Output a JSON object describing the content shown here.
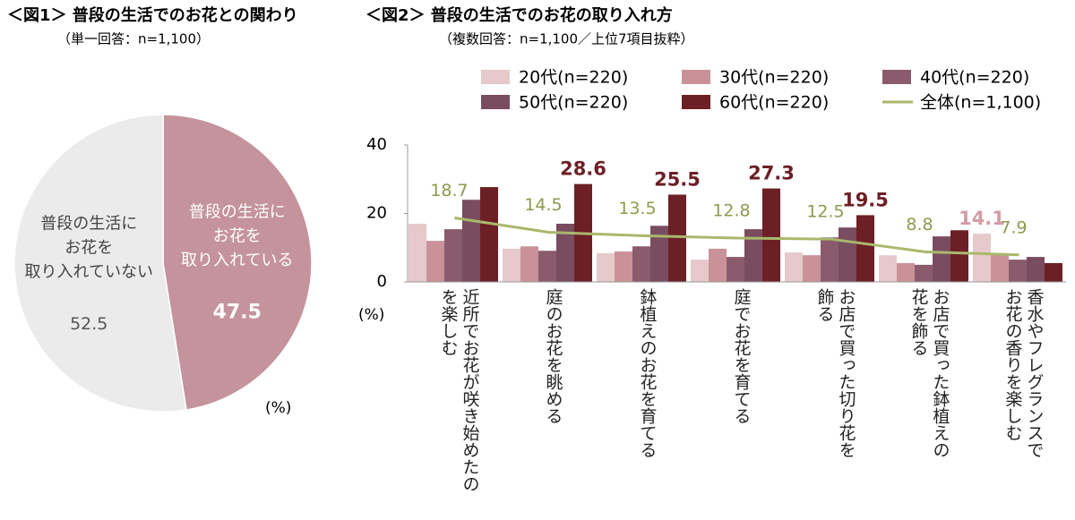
{
  "chart_data": [
    {
      "type": "pie",
      "title": "＜図1＞ 普段の生活でのお花との関わり",
      "subtitle": "（単一回答：n=1,100）",
      "unit": "(%)",
      "categories": [
        [
          "普段の生活に",
          "お花を",
          "取り入れている"
        ],
        [
          "普段の生活に",
          "お花を",
          "取り入れていない"
        ]
      ],
      "values": [
        47.5,
        52.5
      ],
      "colors": [
        "#c4939b",
        "#ebebeb"
      ],
      "value_colors": [
        "#ffffff",
        "#555555"
      ],
      "start": "top",
      "direction": "clockwise"
    },
    {
      "type": "bar",
      "title": "＜図2＞ 普段の生活でのお花の取り入れ方",
      "subtitle": "（複数回答：n=1,100／上位7項目抜粋）",
      "unit": "(%)",
      "categories": [
        [
          "近所でお花が咲き始めたの",
          "を楽しむ"
        ],
        [
          "庭のお花を眺める"
        ],
        [
          "鉢植えのお花を育てる"
        ],
        [
          "庭でお花を育てる"
        ],
        [
          "お店で買った切り花を",
          "飾る"
        ],
        [
          "お店で買った鉢植えの",
          "花を飾る"
        ],
        [
          "香水やフレグランスで",
          "お花の香りを楽しむ"
        ]
      ],
      "ylim": [
        0,
        40
      ],
      "yticks": [
        0,
        20,
        40
      ],
      "legend": "top",
      "series": [
        {
          "name": "20代(n=220)",
          "type": "bar",
          "color": "#e6c9ca",
          "label_color": "#d39ca5",
          "values": [
            17.0,
            9.7,
            8.4,
            6.5,
            8.6,
            7.8,
            14.1
          ],
          "value_labels": [
            null,
            null,
            null,
            null,
            null,
            null,
            "14.1"
          ]
        },
        {
          "name": "30代(n=220)",
          "type": "bar",
          "color": "#c99299",
          "values": [
            12.0,
            10.4,
            8.9,
            9.7,
            7.8,
            5.5,
            8.1
          ]
        },
        {
          "name": "40代(n=220)",
          "type": "bar",
          "color": "#8a5b6c",
          "values": [
            15.4,
            9.1,
            10.4,
            7.3,
            13.0,
            5.0,
            6.5
          ]
        },
        {
          "name": "50代(n=220)",
          "type": "bar",
          "color": "#7a4c5f",
          "values": [
            24.0,
            17.0,
            16.4,
            15.4,
            15.9,
            13.3,
            7.3
          ]
        },
        {
          "name": "60代(n=220)",
          "type": "bar",
          "color": "#6d1f26",
          "label_color": "#6d1f26",
          "values": [
            27.7,
            28.6,
            25.5,
            27.3,
            19.5,
            15.1,
            5.5
          ],
          "value_labels": [
            null,
            "28.6",
            "25.5",
            "27.3",
            "19.5",
            null,
            null
          ]
        },
        {
          "name": "全体(n=1,100)",
          "type": "line",
          "color": "#a9b86c",
          "label_color": "#8c9a4e",
          "values": [
            18.7,
            14.5,
            13.5,
            12.8,
            12.5,
            8.8,
            7.9
          ],
          "value_labels": [
            "18.7",
            "14.5",
            "13.5",
            "12.8",
            "12.5",
            "8.8",
            "7.9"
          ]
        }
      ]
    }
  ]
}
